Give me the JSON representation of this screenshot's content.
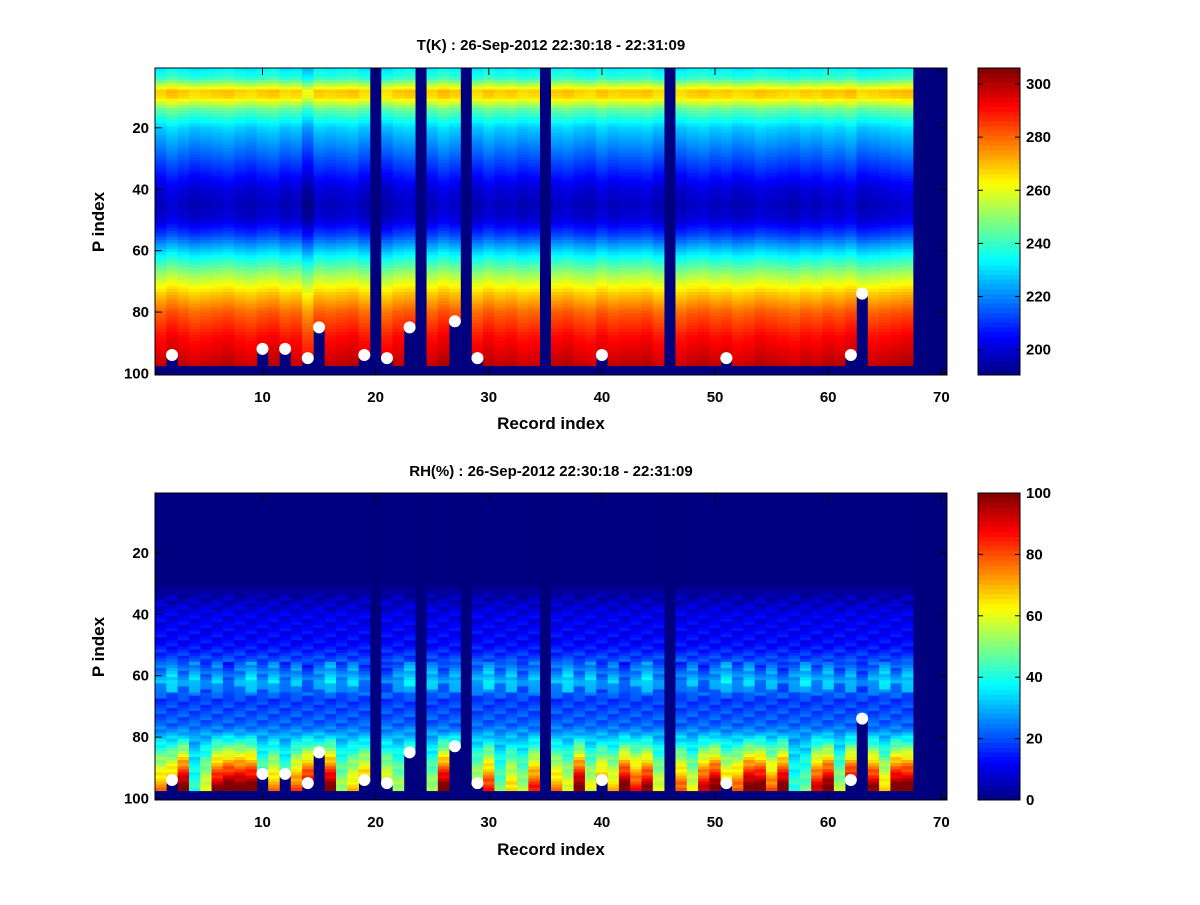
{
  "chart_data": [
    {
      "type": "heatmap",
      "title": "T(K) : 26-Sep-2012 22:30:18 - 22:31:09",
      "xlabel": "Record index",
      "ylabel": "P index",
      "xlim": [
        0.5,
        70.5
      ],
      "ylim": [
        0.5,
        100.5
      ],
      "xticks": [
        10,
        20,
        30,
        40,
        50,
        60,
        70
      ],
      "yticks": [
        20,
        40,
        60,
        80,
        100
      ],
      "clim": [
        190.5,
        306
      ],
      "cticks": [
        200,
        220,
        240,
        260,
        280,
        300
      ],
      "n_records": 70,
      "n_levels": 100,
      "last_valid_level": 97,
      "missing_records": [
        20,
        24,
        28,
        35,
        46,
        68,
        69,
        70
      ],
      "profile_knots": [
        [
          1,
          232
        ],
        [
          4,
          240
        ],
        [
          8,
          268
        ],
        [
          10,
          266
        ],
        [
          14,
          245
        ],
        [
          20,
          228
        ],
        [
          30,
          214
        ],
        [
          40,
          200
        ],
        [
          45,
          197
        ],
        [
          50,
          200
        ],
        [
          55,
          212
        ],
        [
          62,
          234
        ],
        [
          68,
          252
        ],
        [
          74,
          268
        ],
        [
          80,
          280
        ],
        [
          88,
          290
        ],
        [
          95,
          296
        ],
        [
          97,
          298
        ]
      ],
      "column_offsets": [
        0,
        3,
        1,
        -1,
        0,
        1,
        2,
        0,
        -1,
        1,
        2,
        -1,
        0,
        -6,
        1,
        0,
        1,
        2,
        -1,
        0,
        -2,
        1,
        2,
        0,
        0,
        3,
        1,
        0,
        -1,
        2,
        0,
        1,
        -1,
        0,
        0,
        1,
        2,
        0,
        -1,
        2,
        0,
        1,
        1,
        2,
        -1,
        0,
        -1,
        1,
        2,
        0,
        1,
        -1,
        0,
        2,
        1,
        0,
        -1,
        1,
        0,
        2,
        1,
        3,
        -1,
        0,
        1,
        2,
        3
      ]
    },
    {
      "type": "heatmap",
      "title": "RH(%) : 26-Sep-2012 22:30:18 - 22:31:09",
      "xlabel": "Record index",
      "ylabel": "P index",
      "xlim": [
        0.5,
        70.5
      ],
      "ylim": [
        0.5,
        100.5
      ],
      "xticks": [
        10,
        20,
        30,
        40,
        50,
        60,
        70
      ],
      "yticks": [
        20,
        40,
        60,
        80,
        100
      ],
      "clim": [
        0,
        100
      ],
      "cticks": [
        0,
        20,
        40,
        60,
        80,
        100
      ],
      "n_records": 70,
      "n_levels": 100,
      "last_valid_level": 97,
      "missing_records": [
        20,
        24,
        28,
        35,
        46,
        68,
        69,
        70
      ],
      "profile_knots": [
        [
          1,
          0
        ],
        [
          30,
          0
        ],
        [
          34,
          4
        ],
        [
          40,
          10
        ],
        [
          50,
          13
        ],
        [
          58,
          24
        ],
        [
          62,
          30
        ],
        [
          68,
          18
        ],
        [
          76,
          22
        ],
        [
          82,
          35
        ],
        [
          88,
          50
        ],
        [
          93,
          60
        ],
        [
          97,
          68
        ]
      ],
      "column_offsets": [
        5,
        10,
        30,
        -20,
        -5,
        25,
        30,
        30,
        30,
        -10,
        5,
        -15,
        10,
        25,
        20,
        30,
        -10,
        0,
        10,
        0,
        0,
        -10,
        5,
        0,
        -10,
        30,
        30,
        0,
        -5,
        15,
        -15,
        0,
        -10,
        15,
        0,
        5,
        -5,
        30,
        -5,
        10,
        0,
        30,
        15,
        25,
        -5,
        0,
        10,
        -5,
        20,
        30,
        5,
        10,
        30,
        30,
        10,
        30,
        -20,
        -15,
        20,
        30,
        -10,
        30,
        10,
        25,
        0,
        30,
        30
      ]
    }
  ],
  "surface_markers": [
    [
      2,
      94
    ],
    [
      10,
      92
    ],
    [
      12,
      92
    ],
    [
      14,
      95
    ],
    [
      15,
      85
    ],
    [
      19,
      94
    ],
    [
      21,
      95
    ],
    [
      23,
      85
    ],
    [
      27,
      83
    ],
    [
      29,
      95
    ],
    [
      40,
      94
    ],
    [
      51,
      95
    ],
    [
      62,
      94
    ],
    [
      63,
      74
    ]
  ],
  "colors": {
    "missing": "#00007f",
    "marker": "#ffffff"
  }
}
